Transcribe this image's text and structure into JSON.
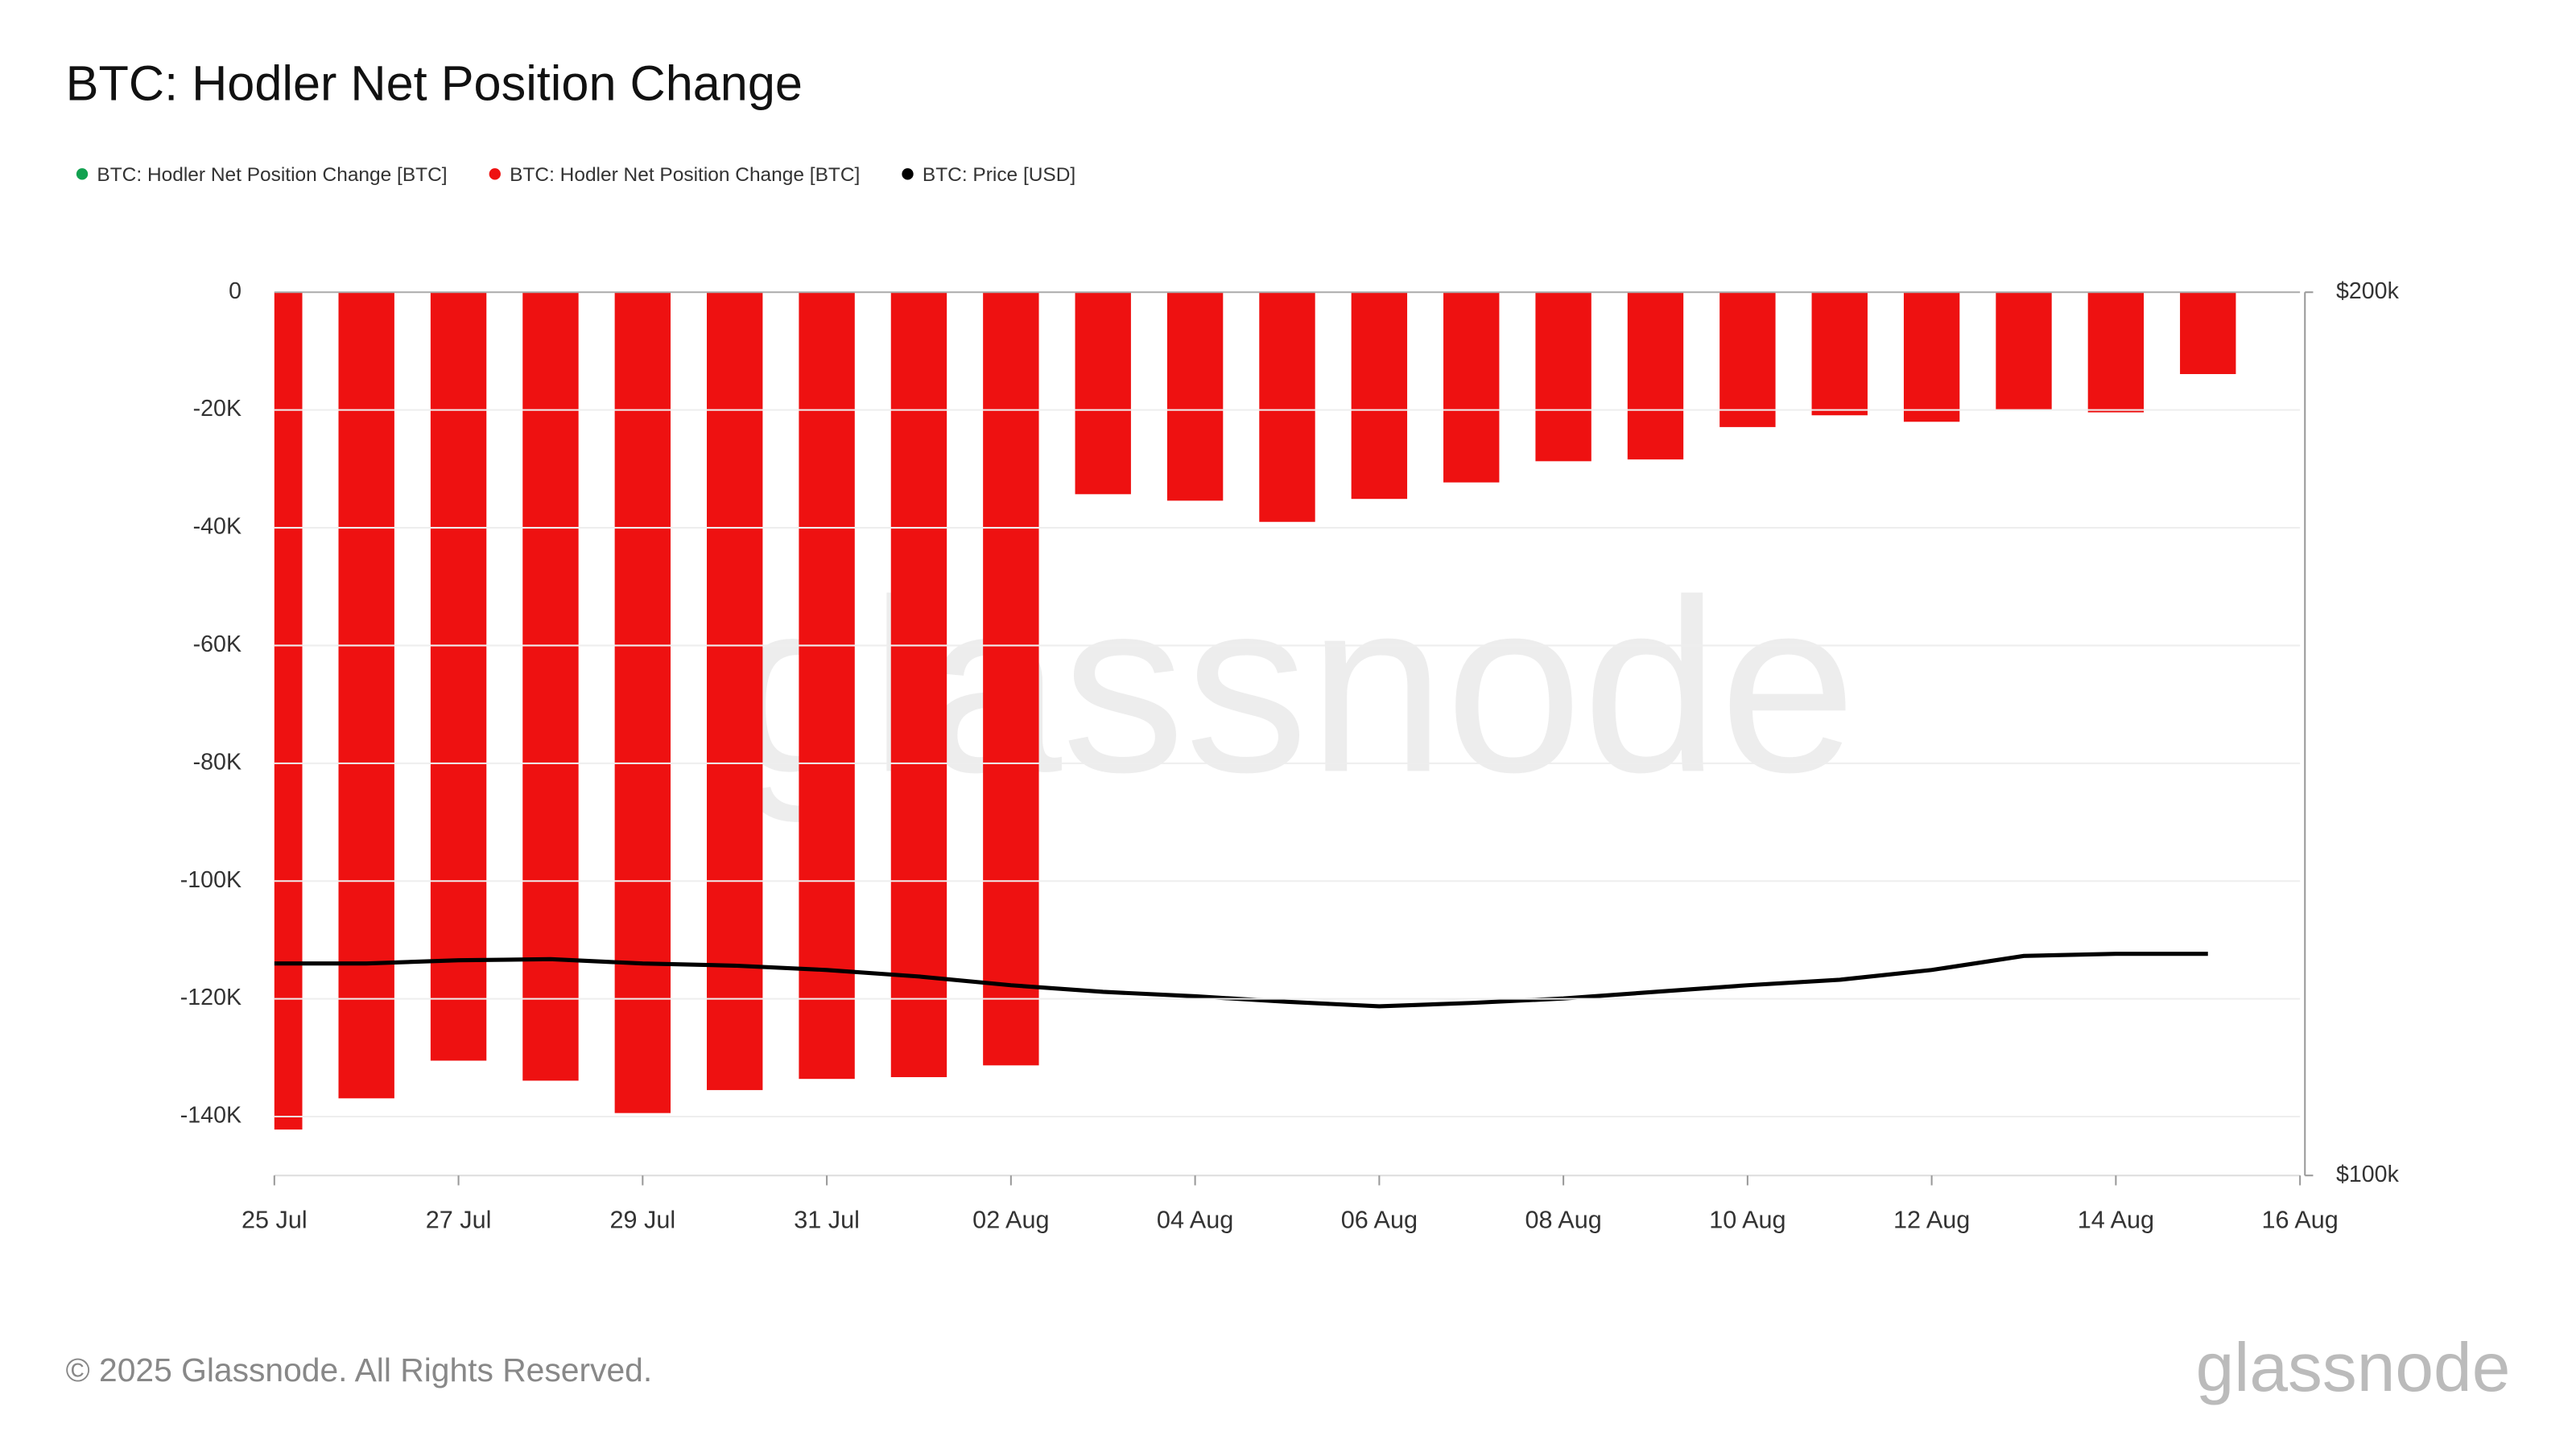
{
  "chart_data": {
    "type": "bar-line",
    "title": "BTC: Hodler Net Position Change",
    "x": [
      "25 Jul",
      "26 Jul",
      "27 Jul",
      "28 Jul",
      "29 Jul",
      "30 Jul",
      "31 Jul",
      "01 Aug",
      "02 Aug",
      "03 Aug",
      "04 Aug",
      "05 Aug",
      "06 Aug",
      "07 Aug",
      "08 Aug",
      "09 Aug",
      "10 Aug",
      "11 Aug",
      "12 Aug",
      "13 Aug",
      "14 Aug",
      "15 Aug"
    ],
    "xlim": [
      "25 Jul",
      "16 Aug"
    ],
    "xticks": [
      "25 Jul",
      "27 Jul",
      "29 Jul",
      "31 Jul",
      "02 Aug",
      "04 Aug",
      "06 Aug",
      "08 Aug",
      "10 Aug",
      "12 Aug",
      "14 Aug",
      "16 Aug"
    ],
    "series": [
      {
        "name": "BTC: Hodler Net Position Change [BTC]",
        "color": "#12a150",
        "type": "bar",
        "values": [
          null,
          null,
          null,
          null,
          null,
          null,
          null,
          null,
          null,
          null,
          null,
          null,
          null,
          null,
          null,
          null,
          null,
          null,
          null,
          null,
          null,
          null
        ]
      },
      {
        "name": "BTC: Hodler Net Position Change [BTC]",
        "color": "#ee1111",
        "type": "bar",
        "values": [
          -142200,
          -136900,
          -130500,
          -133900,
          -139400,
          -135500,
          -133600,
          -133300,
          -131300,
          -34300,
          -35400,
          -39000,
          -35100,
          -32300,
          -28700,
          -28400,
          -22900,
          -20900,
          -22000,
          -20100,
          -20400,
          -13900
        ]
      },
      {
        "name": "BTC: Price [USD]",
        "color": "#000000",
        "type": "line",
        "axis": "y2",
        "values": [
          118100,
          118100,
          118400,
          118500,
          118100,
          117900,
          117500,
          116900,
          116100,
          115500,
          115100,
          114600,
          114200,
          114500,
          114900,
          115500,
          116100,
          116600,
          117500,
          118800,
          119000,
          119000
        ]
      }
    ],
    "ylim": [
      -150000,
      0
    ],
    "yticks": [
      {
        "value": 0,
        "label": "0"
      },
      {
        "value": -20000,
        "label": "-20K"
      },
      {
        "value": -40000,
        "label": "-40K"
      },
      {
        "value": -60000,
        "label": "-60K"
      },
      {
        "value": -80000,
        "label": "-80K"
      },
      {
        "value": -100000,
        "label": "-100K"
      },
      {
        "value": -120000,
        "label": "-120K"
      },
      {
        "value": -140000,
        "label": "-140K"
      }
    ],
    "y2lim": [
      100000,
      200000
    ],
    "y2ticks": [
      {
        "value": 200000,
        "label": "$200k"
      },
      {
        "value": 100000,
        "label": "$100k"
      }
    ],
    "y2_log": true,
    "grid": true,
    "watermark": "glassnode",
    "copyright": "© 2025 Glassnode. All Rights Reserved.",
    "brand": "glassnode"
  }
}
